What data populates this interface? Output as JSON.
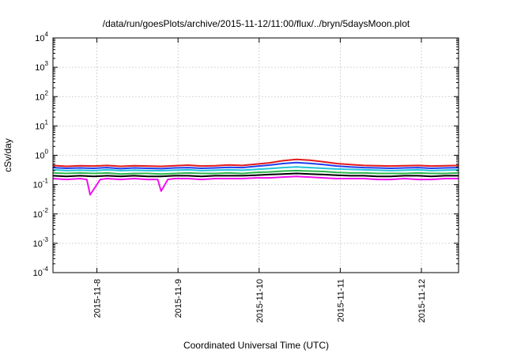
{
  "chart_data": {
    "type": "line",
    "title": "/data/run/goesPlots/archive/2015-11-12/11:00/flux/../bryn/5daysMoon.plot",
    "xlabel": "Coordinated Universal Time (UTC)",
    "ylabel": "cSv/day",
    "y_scale": "log",
    "ylim": [
      0.0001,
      10000
    ],
    "y_ticks": [
      {
        "value": 0.0001,
        "base": "10",
        "exp": "-4"
      },
      {
        "value": 0.001,
        "base": "10",
        "exp": "-3"
      },
      {
        "value": 0.01,
        "base": "10",
        "exp": "-2"
      },
      {
        "value": 0.1,
        "base": "10",
        "exp": "-1"
      },
      {
        "value": 1,
        "base": "10",
        "exp": "0"
      },
      {
        "value": 10,
        "base": "10",
        "exp": "1"
      },
      {
        "value": 100,
        "base": "10",
        "exp": "2"
      },
      {
        "value": 1000,
        "base": "10",
        "exp": "3"
      },
      {
        "value": 10000,
        "base": "10",
        "exp": "4"
      }
    ],
    "x_scale": "time",
    "xlim": [
      "2015-11-07T11:00",
      "2015-11-12T11:00"
    ],
    "x_ticks": [
      "2015-11-8",
      "2015-11-9",
      "2015-11-10",
      "2015-11-11",
      "2015-11-12"
    ],
    "grid": true,
    "series": [
      {
        "color": "#e41a1c",
        "x": [
          "2015-11-07T11:00",
          "2015-11-07T15:00",
          "2015-11-07T19:00",
          "2015-11-07T23:00",
          "2015-11-08T03:00",
          "2015-11-08T07:00",
          "2015-11-08T11:00",
          "2015-11-08T15:00",
          "2015-11-08T19:00",
          "2015-11-08T23:00",
          "2015-11-09T03:00",
          "2015-11-09T07:00",
          "2015-11-09T11:00",
          "2015-11-09T15:00",
          "2015-11-09T19:00",
          "2015-11-09T23:00",
          "2015-11-10T03:00",
          "2015-11-10T07:00",
          "2015-11-10T11:00",
          "2015-11-10T15:00",
          "2015-11-10T19:00",
          "2015-11-10T23:00",
          "2015-11-11T03:00",
          "2015-11-11T07:00",
          "2015-11-11T11:00",
          "2015-11-11T15:00",
          "2015-11-11T19:00",
          "2015-11-11T23:00",
          "2015-11-12T03:00",
          "2015-11-12T07:00",
          "2015-11-12T11:00"
        ],
        "values": [
          0.45,
          0.42,
          0.44,
          0.43,
          0.45,
          0.42,
          0.44,
          0.43,
          0.42,
          0.44,
          0.46,
          0.43,
          0.44,
          0.47,
          0.45,
          0.5,
          0.55,
          0.65,
          0.72,
          0.68,
          0.6,
          0.52,
          0.48,
          0.45,
          0.44,
          0.43,
          0.44,
          0.45,
          0.43,
          0.44,
          0.45
        ]
      },
      {
        "color": "#1f3ff0",
        "x": [
          "2015-11-07T11:00",
          "2015-11-07T15:00",
          "2015-11-07T19:00",
          "2015-11-07T23:00",
          "2015-11-08T03:00",
          "2015-11-08T07:00",
          "2015-11-08T11:00",
          "2015-11-08T15:00",
          "2015-11-08T19:00",
          "2015-11-08T23:00",
          "2015-11-09T03:00",
          "2015-11-09T07:00",
          "2015-11-09T11:00",
          "2015-11-09T15:00",
          "2015-11-09T19:00",
          "2015-11-09T23:00",
          "2015-11-10T03:00",
          "2015-11-10T07:00",
          "2015-11-10T11:00",
          "2015-11-10T15:00",
          "2015-11-10T19:00",
          "2015-11-10T23:00",
          "2015-11-11T03:00",
          "2015-11-11T07:00",
          "2015-11-11T11:00",
          "2015-11-11T15:00",
          "2015-11-11T19:00",
          "2015-11-11T23:00",
          "2015-11-12T03:00",
          "2015-11-12T07:00",
          "2015-11-12T11:00"
        ],
        "values": [
          0.38,
          0.36,
          0.37,
          0.36,
          0.38,
          0.35,
          0.37,
          0.36,
          0.35,
          0.37,
          0.38,
          0.36,
          0.37,
          0.39,
          0.38,
          0.42,
          0.46,
          0.52,
          0.56,
          0.53,
          0.48,
          0.43,
          0.4,
          0.38,
          0.37,
          0.36,
          0.37,
          0.38,
          0.36,
          0.37,
          0.38
        ]
      },
      {
        "color": "#22c4d8",
        "x": [
          "2015-11-07T11:00",
          "2015-11-07T15:00",
          "2015-11-07T19:00",
          "2015-11-07T23:00",
          "2015-11-08T03:00",
          "2015-11-08T07:00",
          "2015-11-08T11:00",
          "2015-11-08T15:00",
          "2015-11-08T19:00",
          "2015-11-08T23:00",
          "2015-11-09T03:00",
          "2015-11-09T07:00",
          "2015-11-09T11:00",
          "2015-11-09T15:00",
          "2015-11-09T19:00",
          "2015-11-09T23:00",
          "2015-11-10T03:00",
          "2015-11-10T07:00",
          "2015-11-10T11:00",
          "2015-11-10T15:00",
          "2015-11-10T19:00",
          "2015-11-10T23:00",
          "2015-11-11T03:00",
          "2015-11-11T07:00",
          "2015-11-11T11:00",
          "2015-11-11T15:00",
          "2015-11-11T19:00",
          "2015-11-11T23:00",
          "2015-11-12T03:00",
          "2015-11-12T07:00",
          "2015-11-12T11:00"
        ],
        "values": [
          0.32,
          0.3,
          0.31,
          0.3,
          0.32,
          0.3,
          0.31,
          0.3,
          0.3,
          0.31,
          0.32,
          0.3,
          0.31,
          0.32,
          0.31,
          0.33,
          0.35,
          0.38,
          0.4,
          0.38,
          0.36,
          0.34,
          0.33,
          0.32,
          0.31,
          0.3,
          0.31,
          0.32,
          0.3,
          0.31,
          0.32
        ]
      },
      {
        "color": "#2ab84a",
        "x": [
          "2015-11-07T11:00",
          "2015-11-07T15:00",
          "2015-11-07T19:00",
          "2015-11-07T23:00",
          "2015-11-08T03:00",
          "2015-11-08T07:00",
          "2015-11-08T11:00",
          "2015-11-08T15:00",
          "2015-11-08T19:00",
          "2015-11-08T23:00",
          "2015-11-09T03:00",
          "2015-11-09T07:00",
          "2015-11-09T11:00",
          "2015-11-09T15:00",
          "2015-11-09T19:00",
          "2015-11-09T23:00",
          "2015-11-10T03:00",
          "2015-11-10T07:00",
          "2015-11-10T11:00",
          "2015-11-10T15:00",
          "2015-11-10T19:00",
          "2015-11-10T23:00",
          "2015-11-11T03:00",
          "2015-11-11T07:00",
          "2015-11-11T11:00",
          "2015-11-11T15:00",
          "2015-11-11T19:00",
          "2015-11-11T23:00",
          "2015-11-12T03:00",
          "2015-11-12T07:00",
          "2015-11-12T11:00"
        ],
        "values": [
          0.25,
          0.24,
          0.25,
          0.24,
          0.25,
          0.23,
          0.24,
          0.24,
          0.23,
          0.24,
          0.25,
          0.24,
          0.24,
          0.25,
          0.24,
          0.26,
          0.27,
          0.29,
          0.3,
          0.29,
          0.28,
          0.26,
          0.25,
          0.25,
          0.24,
          0.24,
          0.24,
          0.25,
          0.24,
          0.24,
          0.25
        ]
      },
      {
        "color": "#000000",
        "x": [
          "2015-11-07T11:00",
          "2015-11-07T15:00",
          "2015-11-07T19:00",
          "2015-11-07T23:00",
          "2015-11-08T03:00",
          "2015-11-08T07:00",
          "2015-11-08T11:00",
          "2015-11-08T15:00",
          "2015-11-08T19:00",
          "2015-11-08T23:00",
          "2015-11-09T03:00",
          "2015-11-09T07:00",
          "2015-11-09T11:00",
          "2015-11-09T15:00",
          "2015-11-09T19:00",
          "2015-11-09T23:00",
          "2015-11-10T03:00",
          "2015-11-10T07:00",
          "2015-11-10T11:00",
          "2015-11-10T15:00",
          "2015-11-10T19:00",
          "2015-11-10T23:00",
          "2015-11-11T03:00",
          "2015-11-11T07:00",
          "2015-11-11T11:00",
          "2015-11-11T15:00",
          "2015-11-11T19:00",
          "2015-11-11T23:00",
          "2015-11-12T03:00",
          "2015-11-12T07:00",
          "2015-11-12T11:00"
        ],
        "values": [
          0.2,
          0.19,
          0.2,
          0.19,
          0.2,
          0.19,
          0.2,
          0.19,
          0.19,
          0.2,
          0.2,
          0.19,
          0.2,
          0.2,
          0.2,
          0.21,
          0.22,
          0.23,
          0.24,
          0.23,
          0.22,
          0.21,
          0.2,
          0.2,
          0.19,
          0.19,
          0.2,
          0.2,
          0.19,
          0.2,
          0.2
        ]
      },
      {
        "color": "#f00ff0",
        "x": [
          "2015-11-07T11:00",
          "2015-11-07T15:00",
          "2015-11-07T19:00",
          "2015-11-07T21:00",
          "2015-11-07T22:00",
          "2015-11-08T01:00",
          "2015-11-08T03:00",
          "2015-11-08T07:00",
          "2015-11-08T11:00",
          "2015-11-08T15:00",
          "2015-11-08T18:00",
          "2015-11-08T19:00",
          "2015-11-08T21:00",
          "2015-11-08T23:00",
          "2015-11-09T03:00",
          "2015-11-09T07:00",
          "2015-11-09T11:00",
          "2015-11-09T15:00",
          "2015-11-09T19:00",
          "2015-11-09T23:00",
          "2015-11-10T03:00",
          "2015-11-10T07:00",
          "2015-11-10T11:00",
          "2015-11-10T15:00",
          "2015-11-10T19:00",
          "2015-11-10T23:00",
          "2015-11-11T03:00",
          "2015-11-11T07:00",
          "2015-11-11T11:00",
          "2015-11-11T15:00",
          "2015-11-11T19:00",
          "2015-11-11T23:00",
          "2015-11-12T03:00",
          "2015-11-12T07:00",
          "2015-11-12T11:00"
        ],
        "values": [
          0.16,
          0.15,
          0.16,
          0.15,
          0.045,
          0.15,
          0.16,
          0.15,
          0.16,
          0.15,
          0.15,
          0.06,
          0.15,
          0.16,
          0.16,
          0.15,
          0.16,
          0.16,
          0.16,
          0.17,
          0.17,
          0.18,
          0.19,
          0.18,
          0.17,
          0.16,
          0.16,
          0.16,
          0.15,
          0.15,
          0.16,
          0.15,
          0.15,
          0.16,
          0.16
        ]
      }
    ]
  }
}
